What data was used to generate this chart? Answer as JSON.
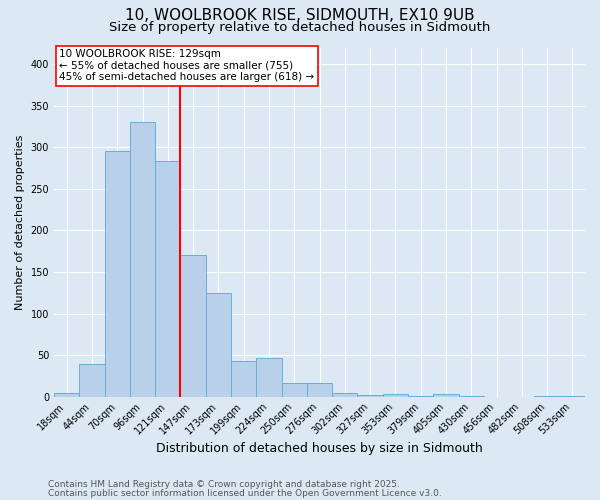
{
  "title": "10, WOOLBROOK RISE, SIDMOUTH, EX10 9UB",
  "subtitle": "Size of property relative to detached houses in Sidmouth",
  "xlabel": "Distribution of detached houses by size in Sidmouth",
  "ylabel": "Number of detached properties",
  "bin_labels": [
    "18sqm",
    "44sqm",
    "70sqm",
    "96sqm",
    "121sqm",
    "147sqm",
    "173sqm",
    "199sqm",
    "224sqm",
    "250sqm",
    "276sqm",
    "302sqm",
    "327sqm",
    "353sqm",
    "379sqm",
    "405sqm",
    "430sqm",
    "456sqm",
    "482sqm",
    "508sqm",
    "533sqm"
  ],
  "bin_values": [
    5,
    39,
    295,
    330,
    284,
    170,
    125,
    43,
    46,
    16,
    17,
    5,
    2,
    3,
    1,
    3,
    1,
    0,
    0,
    1,
    1
  ],
  "bar_color": "#b8d0ea",
  "bar_edge_color": "#6aadd5",
  "background_color": "#dce9f5",
  "vline_position": 4.5,
  "vline_color": "red",
  "annotation_line1": "10 WOOLBROOK RISE: 129sqm",
  "annotation_line2": "← 55% of detached houses are smaller (755)",
  "annotation_line3": "45% of semi-detached houses are larger (618) →",
  "annotation_box_facecolor": "white",
  "annotation_box_edgecolor": "red",
  "ylim": [
    0,
    420
  ],
  "yticks": [
    0,
    50,
    100,
    150,
    200,
    250,
    300,
    350,
    400
  ],
  "footer_line1": "Contains HM Land Registry data © Crown copyright and database right 2025.",
  "footer_line2": "Contains public sector information licensed under the Open Government Licence v3.0.",
  "title_fontsize": 11,
  "subtitle_fontsize": 9.5,
  "ylabel_fontsize": 8,
  "xlabel_fontsize": 9,
  "tick_fontsize": 7,
  "annotation_fontsize": 7.5,
  "footer_fontsize": 6.5
}
